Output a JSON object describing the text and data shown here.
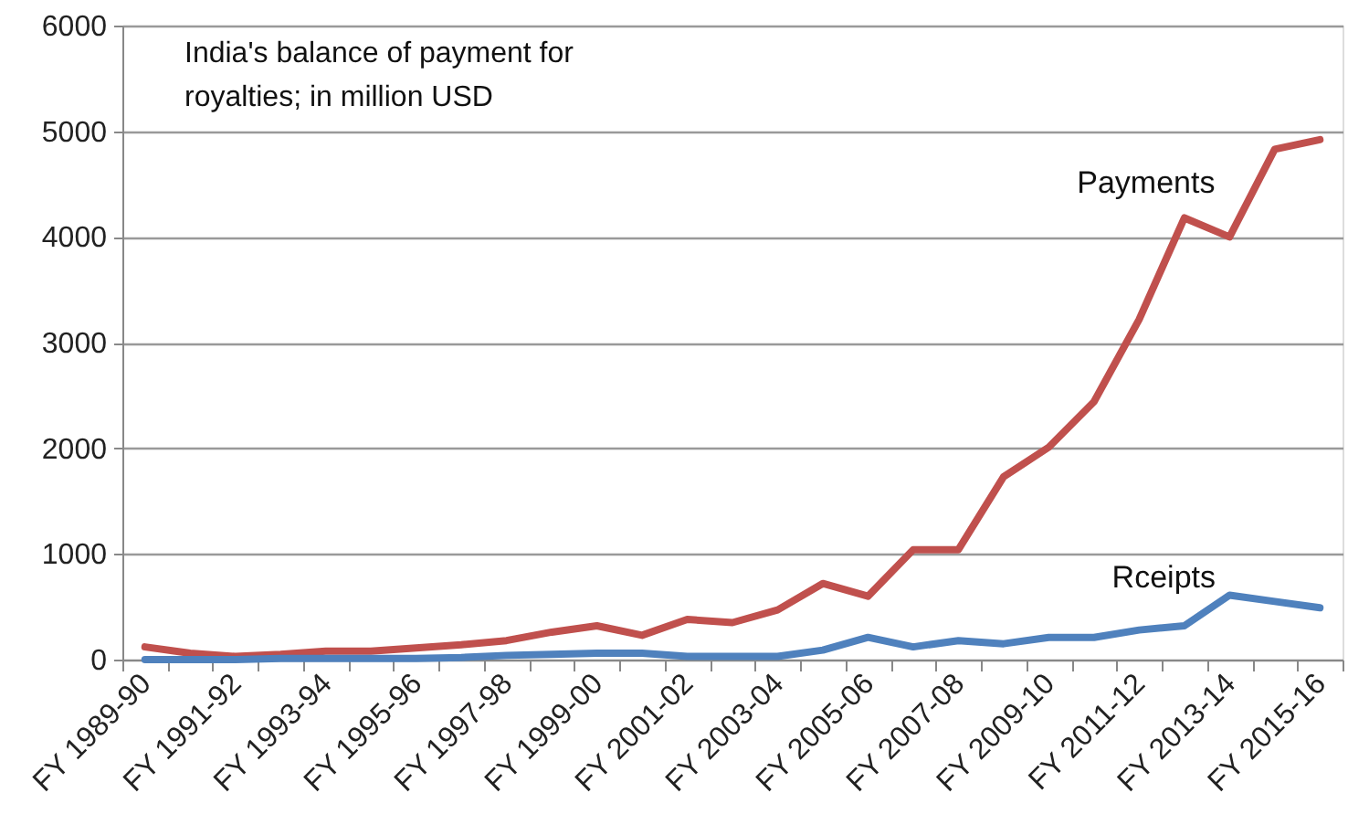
{
  "chart_data": {
    "type": "line",
    "title": "India's balance of payment for royalties; in million USD",
    "categories": [
      "FY 1989-90",
      null,
      "FY 1991-92",
      null,
      "FY 1993-94",
      null,
      "FY 1995-96",
      null,
      "FY 1997-98",
      null,
      "FY 1999-00",
      null,
      "FY 2001-02",
      null,
      "FY 2003-04",
      null,
      "FY 2005-06",
      null,
      "FY 2007-08",
      null,
      "FY 2009-10",
      null,
      "FY 2011-12",
      null,
      "FY 2013-14",
      null,
      "FY 2015-16"
    ],
    "series": [
      {
        "name": "Payments",
        "color": "#c0504d",
        "values": [
          120,
          60,
          30,
          50,
          80,
          80,
          110,
          140,
          180,
          260,
          320,
          230,
          380,
          350,
          470,
          720,
          600,
          1040,
          1040,
          1730,
          2010,
          2440,
          3220,
          4180,
          4000,
          4830,
          4920
        ]
      },
      {
        "name": "Rceipts",
        "color": "#4f81bd",
        "values": [
          0,
          0,
          0,
          10,
          10,
          10,
          10,
          20,
          40,
          50,
          60,
          60,
          30,
          30,
          30,
          90,
          210,
          120,
          180,
          150,
          210,
          210,
          280,
          320,
          610,
          550,
          490
        ]
      }
    ],
    "ylim": [
      0,
      6000
    ],
    "yticks": [
      0,
      1000,
      2000,
      3000,
      4000,
      5000,
      6000
    ],
    "grid": "y",
    "marker": "none",
    "line_style": "solid"
  }
}
